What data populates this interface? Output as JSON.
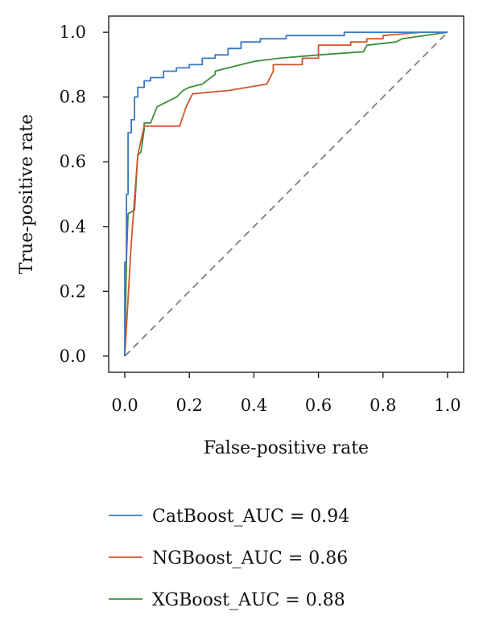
{
  "chart_data": {
    "type": "line",
    "xlabel": "False-positive rate",
    "ylabel": "True-positive rate",
    "xlim": [
      -0.05,
      1.05
    ],
    "ylim": [
      -0.05,
      1.05
    ],
    "xticks": [
      "0.0",
      "0.2",
      "0.4",
      "0.6",
      "0.8",
      "1.0"
    ],
    "yticks": [
      "0.0",
      "0.2",
      "0.4",
      "0.6",
      "0.8",
      "1.0"
    ],
    "grid": false,
    "legend_position": "bottom",
    "series": [
      {
        "name": "CatBoost_AUC = 0.94",
        "color": "#3a78c2",
        "x": [
          0,
          0,
          0.005,
          0.005,
          0.01,
          0.01,
          0.02,
          0.02,
          0.03,
          0.03,
          0.04,
          0.04,
          0.06,
          0.06,
          0.08,
          0.08,
          0.12,
          0.12,
          0.16,
          0.16,
          0.2,
          0.2,
          0.24,
          0.24,
          0.28,
          0.28,
          0.32,
          0.32,
          0.36,
          0.36,
          0.42,
          0.42,
          0.5,
          0.5,
          0.68,
          0.68,
          0.85,
          1.0
        ],
        "y": [
          0,
          0.29,
          0.29,
          0.5,
          0.5,
          0.69,
          0.69,
          0.73,
          0.73,
          0.8,
          0.8,
          0.83,
          0.83,
          0.85,
          0.85,
          0.86,
          0.86,
          0.88,
          0.88,
          0.89,
          0.89,
          0.9,
          0.9,
          0.92,
          0.92,
          0.93,
          0.93,
          0.95,
          0.95,
          0.97,
          0.97,
          0.98,
          0.98,
          0.99,
          0.99,
          1.0,
          1.0,
          1.0
        ]
      },
      {
        "name": "NGBoost_AUC = 0.86",
        "color": "#d1562c",
        "x": [
          0,
          0.02,
          0.04,
          0.06,
          0.06,
          0.17,
          0.19,
          0.2,
          0.21,
          0.32,
          0.44,
          0.46,
          0.46,
          0.55,
          0.55,
          0.6,
          0.6,
          0.7,
          0.7,
          0.75,
          0.75,
          0.8,
          0.8,
          0.92,
          1.0
        ],
        "y": [
          0,
          0.35,
          0.62,
          0.71,
          0.71,
          0.71,
          0.77,
          0.79,
          0.81,
          0.82,
          0.84,
          0.88,
          0.9,
          0.9,
          0.92,
          0.92,
          0.96,
          0.96,
          0.97,
          0.97,
          0.98,
          0.98,
          0.99,
          1.0,
          1.0
        ]
      },
      {
        "name": "XGBoost_AUC = 0.88",
        "color": "#3a8f3c",
        "x": [
          0,
          0.005,
          0.01,
          0.03,
          0.04,
          0.05,
          0.06,
          0.06,
          0.08,
          0.1,
          0.12,
          0.14,
          0.16,
          0.18,
          0.2,
          0.24,
          0.28,
          0.28,
          0.32,
          0.36,
          0.4,
          0.48,
          0.6,
          0.74,
          0.75,
          0.84,
          0.86,
          1.0
        ],
        "y": [
          0,
          0.3,
          0.44,
          0.45,
          0.62,
          0.63,
          0.7,
          0.72,
          0.72,
          0.77,
          0.78,
          0.79,
          0.8,
          0.82,
          0.83,
          0.84,
          0.87,
          0.88,
          0.89,
          0.9,
          0.91,
          0.92,
          0.93,
          0.94,
          0.96,
          0.97,
          0.98,
          1.0
        ]
      }
    ],
    "reference_line": {
      "x": [
        0,
        1
      ],
      "y": [
        0,
        1
      ],
      "color": "#808080",
      "style": "dashed"
    }
  }
}
